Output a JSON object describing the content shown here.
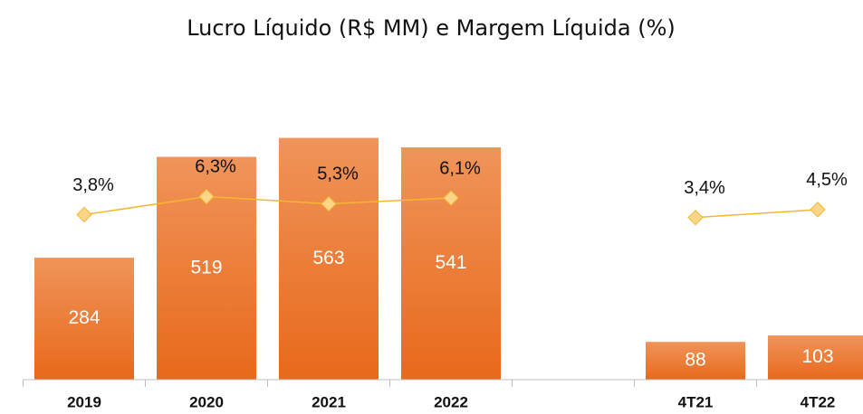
{
  "chart_data": {
    "type": "bar",
    "title": "Lucro Líquido (R$ MM) e  Margem Líquida (%)",
    "categories": [
      "2019",
      "2020",
      "2021",
      "2022",
      null,
      "4T21",
      "4T22"
    ],
    "series": [
      {
        "type": "bar",
        "color": "#ec7a2f",
        "values": [
          284,
          519,
          563,
          541,
          null,
          88,
          103
        ]
      },
      {
        "type": "line",
        "axis": "y2",
        "color": "#f5b731",
        "marker_color": "#fdd58a",
        "values": [
          3.8,
          6.3,
          5.3,
          6.1,
          null,
          3.4,
          4.5
        ],
        "value_labels": [
          "3,8%",
          "6,3%",
          "5,3%",
          "6,1%",
          null,
          "3,4%",
          "4,5%"
        ]
      }
    ],
    "ylim": [
      0,
      600
    ],
    "y2lim": [
      -19,
      16.6
    ]
  }
}
